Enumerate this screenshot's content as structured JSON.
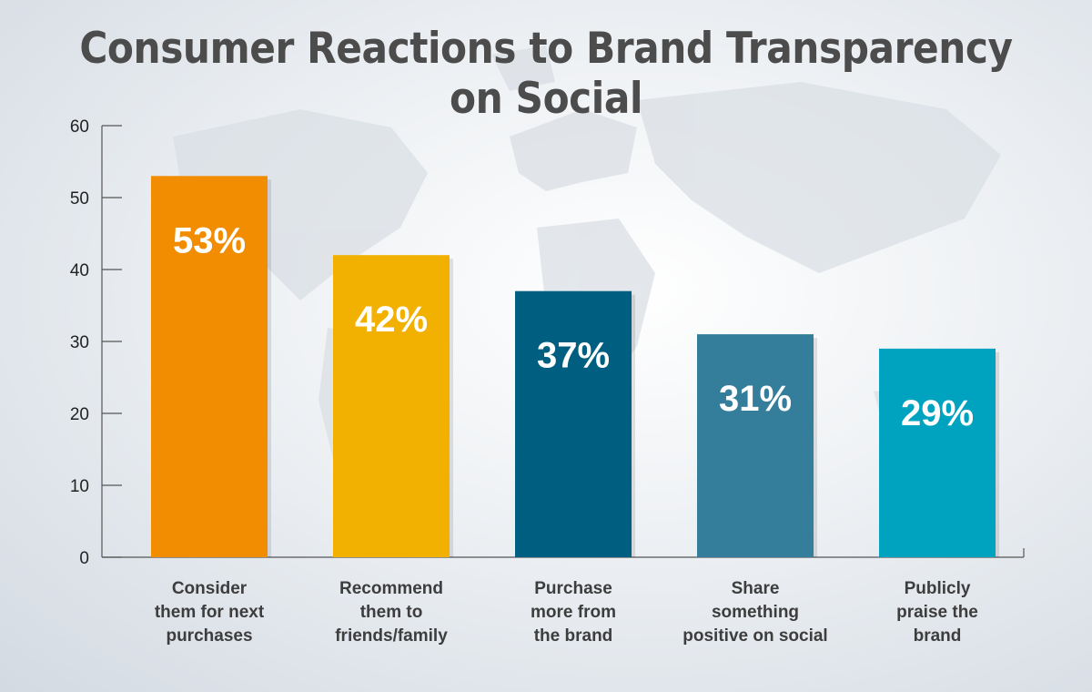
{
  "chart_data": {
    "type": "bar",
    "title": "Consumer Reactions to Brand Transparency on Social",
    "xlabel": "",
    "ylabel": "",
    "ylim": [
      0,
      60
    ],
    "yticks": [
      "0",
      "10",
      "20",
      "30",
      "40",
      "50",
      "60"
    ],
    "grid": false,
    "legend": "none",
    "categories": [
      [
        "Consider",
        "them for next",
        "purchases"
      ],
      [
        "Recommend",
        "them to",
        "friends/family"
      ],
      [
        "Purchase",
        "more from",
        "the brand"
      ],
      [
        "Share",
        "something",
        "positive on social"
      ],
      [
        "Publicly",
        "praise the",
        "brand"
      ]
    ],
    "values": [
      53,
      42,
      37,
      31,
      29
    ],
    "data_labels": [
      "53%",
      "42%",
      "37%",
      "31%",
      "29%"
    ],
    "colors": [
      "#f28c00",
      "#f2b000",
      "#005f80",
      "#357e9b",
      "#00a3bf"
    ]
  }
}
